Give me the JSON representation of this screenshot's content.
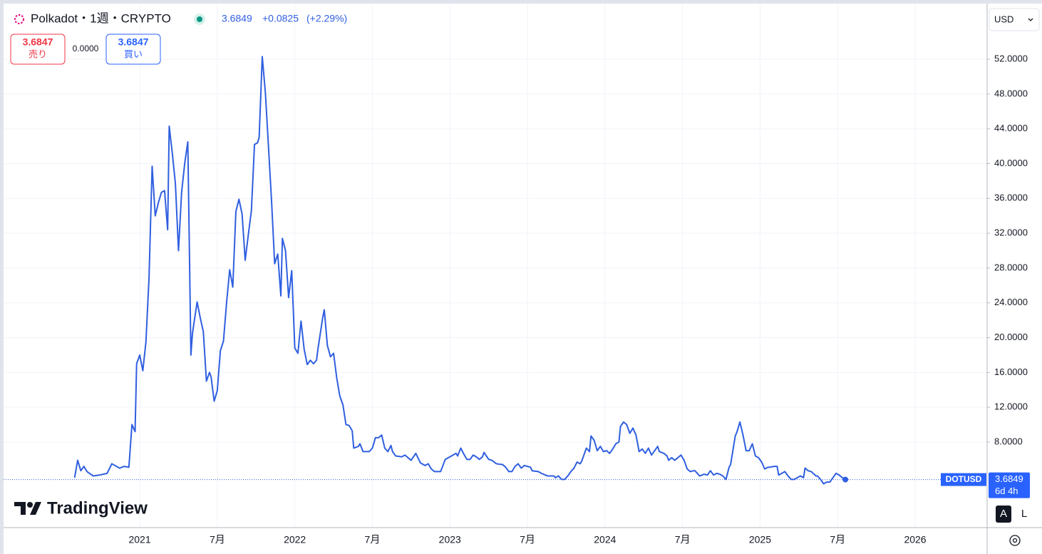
{
  "chart_data": {
    "type": "line",
    "title": "Polkadot・1週・CRYPTO",
    "x": [
      2020.58,
      2020.6,
      2020.62,
      2020.64,
      2020.66,
      2020.7,
      2020.74,
      2020.79,
      2020.82,
      2020.87,
      2020.9,
      2020.93,
      2020.95,
      2020.97,
      2020.98,
      2021.0,
      2021.02,
      2021.04,
      2021.06,
      2021.08,
      2021.1,
      2021.12,
      2021.14,
      2021.16,
      2021.18,
      2021.19,
      2021.21,
      2021.23,
      2021.25,
      2021.27,
      2021.29,
      2021.31,
      2021.33,
      2021.34,
      2021.37,
      2021.39,
      2021.41,
      2021.43,
      2021.45,
      2021.46,
      2021.48,
      2021.5,
      2021.52,
      2021.54,
      2021.56,
      2021.58,
      2021.6,
      2021.62,
      2021.64,
      2021.66,
      2021.68,
      2021.7,
      2021.72,
      2021.74,
      2021.76,
      2021.77,
      2021.79,
      2021.81,
      2021.83,
      2021.85,
      2021.87,
      2021.89,
      2021.91,
      2021.92,
      2021.94,
      2021.96,
      2021.98,
      2022.0,
      2022.02,
      2022.04,
      2022.06,
      2022.08,
      2022.1,
      2022.12,
      2022.14,
      2022.15,
      2022.18,
      2022.19,
      2022.21,
      2022.23,
      2022.25,
      2022.27,
      2022.29,
      2022.31,
      2022.33,
      2022.35,
      2022.37,
      2022.38,
      2022.41,
      2022.42,
      2022.44,
      2022.48,
      2022.5,
      2022.52,
      2022.54,
      2022.56,
      2022.58,
      2022.6,
      2022.62,
      2022.63,
      2022.65,
      2022.69,
      2022.71,
      2022.75,
      2022.78,
      2022.81,
      2022.84,
      2022.86,
      2022.88,
      2022.9,
      2022.94,
      2022.97,
      2023.01,
      2023.04,
      2023.05,
      2023.07,
      2023.09,
      2023.11,
      2023.13,
      2023.15,
      2023.17,
      2023.19,
      2023.21,
      2023.22,
      2023.25,
      2023.27,
      2023.3,
      2023.34,
      2023.36,
      2023.38,
      2023.4,
      2023.42,
      2023.44,
      2023.46,
      2023.48,
      2023.52,
      2023.53,
      2023.57,
      2023.59,
      2023.63,
      2023.67,
      2023.68,
      2023.7,
      2023.72,
      2023.74,
      2023.76,
      2023.78,
      2023.8,
      2023.82,
      2023.84,
      2023.85,
      2023.88,
      2023.9,
      2023.91,
      2023.93,
      2023.95,
      2023.97,
      2023.99,
      2024.01,
      2024.03,
      2024.05,
      2024.07,
      2024.09,
      2024.1,
      2024.12,
      2024.14,
      2024.16,
      2024.18,
      2024.2,
      2024.22,
      2024.24,
      2024.26,
      2024.28,
      2024.3,
      2024.32,
      2024.34,
      2024.35,
      2024.38,
      2024.4,
      2024.41,
      2024.43,
      2024.45,
      2024.47,
      2024.49,
      2024.51,
      2024.53,
      2024.55,
      2024.57,
      2024.58,
      2024.61,
      2024.64,
      2024.66,
      2024.68,
      2024.7,
      2024.72,
      2024.74,
      2024.76,
      2024.78,
      2024.8,
      2024.81,
      2024.84,
      2024.85,
      2024.87,
      2024.89,
      2024.91,
      2024.93,
      2024.95,
      2024.97,
      2024.99,
      2025.01,
      2025.03,
      2025.05,
      2025.06,
      2025.09,
      2025.11,
      2025.12,
      2025.14,
      2025.16,
      2025.18,
      2025.2,
      2025.22,
      2025.24,
      2025.26,
      2025.28,
      2025.29,
      2025.31,
      2025.33,
      2025.36,
      2025.37,
      2025.39,
      2025.41,
      2025.43,
      2025.45,
      2025.47,
      2025.49,
      2025.51,
      2025.53,
      2025.55
    ],
    "series": [
      {
        "name": "DOTUSD",
        "color": "#2f5fe0",
        "values": [
          3.9,
          5.9,
          4.7,
          5.2,
          4.6,
          4.1,
          4.2,
          4.4,
          5.5,
          5.0,
          5.2,
          5.1,
          10.0,
          9.2,
          17.0,
          18.0,
          16.2,
          19.5,
          26.9,
          39.7,
          34.0,
          35.5,
          36.7,
          36.9,
          32.4,
          44.3,
          41.2,
          37.7,
          30.0,
          36.7,
          40.0,
          42.5,
          18.0,
          20.5,
          24.1,
          22.3,
          20.7,
          15.0,
          16.0,
          15.5,
          12.7,
          13.9,
          18.5,
          19.6,
          24.0,
          27.8,
          25.8,
          34.5,
          35.9,
          34.2,
          28.9,
          31.8,
          34.6,
          42.2,
          42.4,
          43.0,
          52.3,
          48.2,
          42.0,
          35.7,
          28.5,
          29.6,
          24.8,
          31.4,
          30.0,
          24.6,
          27.7,
          18.8,
          18.2,
          21.9,
          18.7,
          16.9,
          17.4,
          17.0,
          17.4,
          18.8,
          22.3,
          23.2,
          19.1,
          17.8,
          18.2,
          15.4,
          13.3,
          12.3,
          10.0,
          9.9,
          9.3,
          7.3,
          7.5,
          7.8,
          6.9,
          6.9,
          7.3,
          8.5,
          8.5,
          8.8,
          7.3,
          6.9,
          7.6,
          6.9,
          6.4,
          6.3,
          6.5,
          5.9,
          6.7,
          5.6,
          5.3,
          5.5,
          4.9,
          4.6,
          4.6,
          6.0,
          6.4,
          6.7,
          6.4,
          7.3,
          6.6,
          6.0,
          6.0,
          6.5,
          6.3,
          6.0,
          6.3,
          6.8,
          6.0,
          5.9,
          5.5,
          5.4,
          5.1,
          4.6,
          4.6,
          5.2,
          5.5,
          5.0,
          5.3,
          5.1,
          4.7,
          4.6,
          4.4,
          4.1,
          4.1,
          3.9,
          4.1,
          3.7,
          3.7,
          4.1,
          4.6,
          5.0,
          5.7,
          5.5,
          5.8,
          7.3,
          6.9,
          8.7,
          8.2,
          7.0,
          7.5,
          6.9,
          7.0,
          6.7,
          7.2,
          7.8,
          8.0,
          9.8,
          10.3,
          10.0,
          9.0,
          9.6,
          8.8,
          6.9,
          7.2,
          6.7,
          7.3,
          6.5,
          7.0,
          7.5,
          6.9,
          6.7,
          6.4,
          5.9,
          6.2,
          5.9,
          6.2,
          6.5,
          5.9,
          4.9,
          4.6,
          4.7,
          4.7,
          4.1,
          4.3,
          4.2,
          4.7,
          4.2,
          4.4,
          4.3,
          4.1,
          3.7,
          5.1,
          5.4,
          8.7,
          9.1,
          10.3,
          8.8,
          7.0,
          7.0,
          7.8,
          6.4,
          6.2,
          5.7,
          4.9,
          5.1,
          5.1,
          5.2,
          5.2,
          4.2,
          4.4,
          4.6,
          4.1,
          3.7,
          3.7,
          3.9,
          4.1,
          3.9,
          5.0,
          4.7,
          4.6,
          4.1,
          4.1,
          3.7,
          3.2,
          3.4,
          3.4,
          3.9,
          4.4,
          4.2,
          3.9,
          3.6849
        ]
      }
    ],
    "xlim": [
      2020.122,
      2026.464
    ],
    "xticks": [
      2021,
      {
        "value": 2021.5,
        "label": "7月"
      },
      2022,
      {
        "value": 2022.5,
        "label": "7月"
      },
      2023,
      {
        "value": 2023.5,
        "label": "7月"
      },
      2024,
      {
        "value": 2024.5,
        "label": "7月"
      },
      2025,
      {
        "value": 2025.5,
        "label": "7月"
      },
      2026
    ],
    "ylim": [
      -1.84,
      58.4
    ],
    "yticks": [
      {
        "value": 8,
        "label": "8.0000"
      },
      {
        "value": 12,
        "label": "12.0000"
      },
      {
        "value": 16,
        "label": "16.0000"
      },
      {
        "value": 20,
        "label": "20.0000"
      },
      {
        "value": 24,
        "label": "24.0000"
      },
      {
        "value": 28,
        "label": "28.0000"
      },
      {
        "value": 32,
        "label": "32.0000"
      },
      {
        "value": 36,
        "label": "36.0000"
      },
      {
        "value": 40,
        "label": "40.0000"
      },
      {
        "value": 44,
        "label": "44.0000"
      },
      {
        "value": 48,
        "label": "48.0000"
      },
      {
        "value": 52,
        "label": "52.0000"
      }
    ],
    "grid": true
  },
  "ui": {
    "change": "+0.0825",
    "change_pct": "(+2.29%)",
    "sell_price": "3.6847",
    "sell_label": "売り",
    "spread": "0.0000",
    "buy_price": "3.6847",
    "buy_label": "買い",
    "currency": "USD",
    "countdown": "6d 4h",
    "logo": "TradingView",
    "auto_button": "A",
    "log_button": "L"
  }
}
